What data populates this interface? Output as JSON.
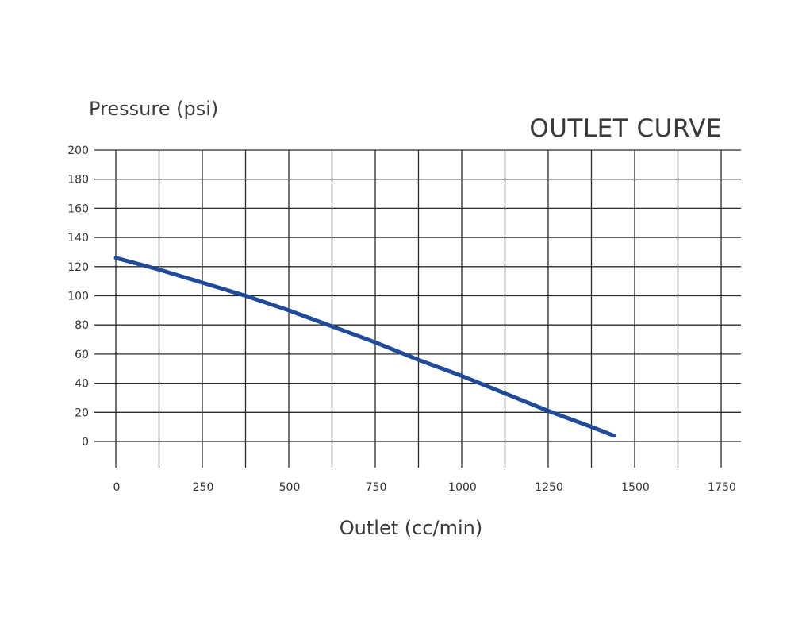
{
  "chart_data": {
    "type": "line",
    "title": "OUTLET CURVE",
    "xlabel": "Outlet (cc/min)",
    "ylabel": "Pressure (psi)",
    "xlim": [
      0,
      1750
    ],
    "ylim": [
      0,
      200
    ],
    "x_ticks": [
      "0",
      "250",
      "500",
      "750",
      "1000",
      "1250",
      "1500",
      "1750"
    ],
    "y_ticks": [
      "0",
      "20",
      "40",
      "60",
      "80",
      "100",
      "120",
      "140",
      "160",
      "180",
      "200"
    ],
    "grid": true,
    "series": [
      {
        "x": [
          0,
          125,
          250,
          375,
          500,
          625,
          750,
          875,
          1000,
          1125,
          1250,
          1375,
          1440
        ],
        "y": [
          126,
          118,
          109,
          100,
          90,
          79,
          68,
          56,
          45,
          33,
          21,
          10,
          4
        ]
      }
    ],
    "colors": {
      "line": "#1f4b99",
      "grid": "#2a2a2a",
      "text": "#333333"
    }
  }
}
